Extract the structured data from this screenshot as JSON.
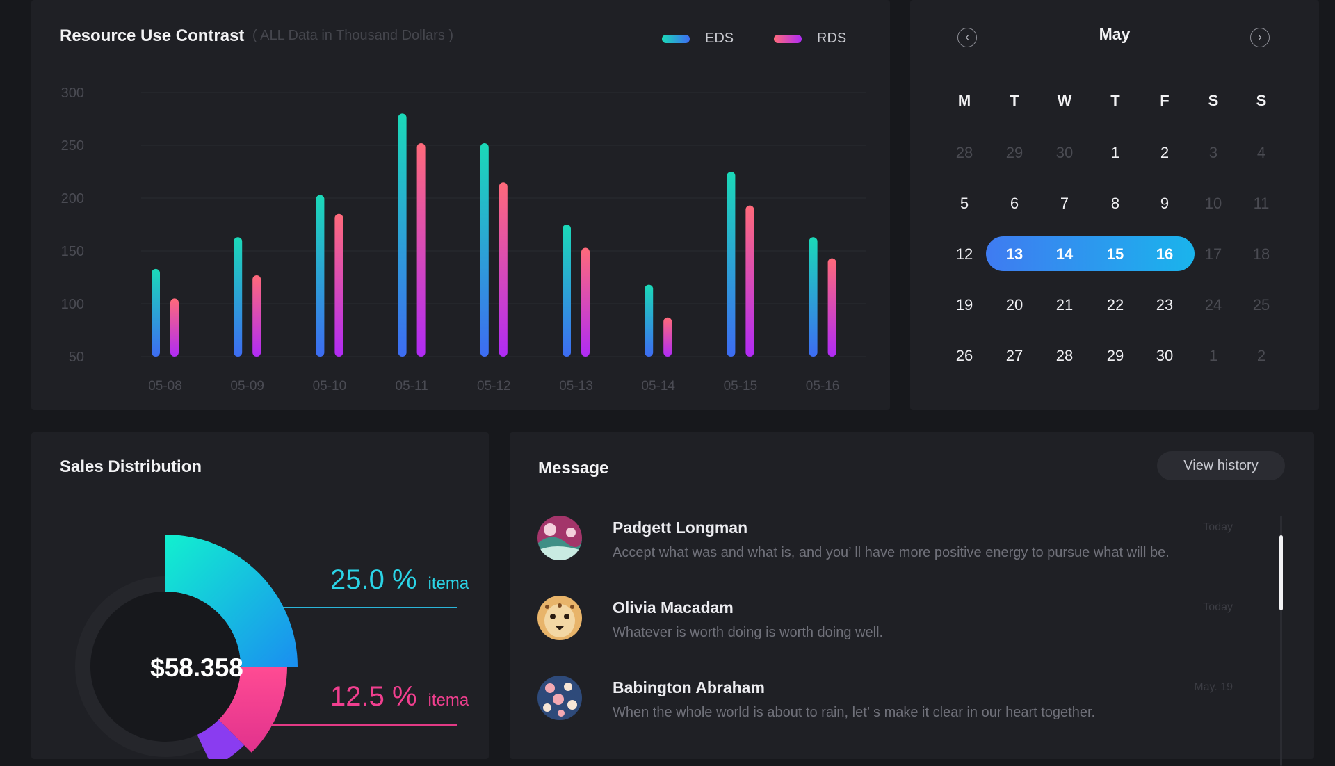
{
  "colors": {
    "background": "#17181c",
    "panel": "#1f2025",
    "eds_gradient": [
      "#1bd9b8",
      "#3d6cf2"
    ],
    "rds_gradient": [
      "#ff6a7a",
      "#b02bf5"
    ],
    "calendar_selection": [
      "#3f7bf1",
      "#1ab4ec"
    ],
    "accent_cyan": "#2bd4e6",
    "accent_pink": "#f13f8f"
  },
  "chart_panel": {
    "title": "Resource Use Contrast",
    "subtitle": "( ALL Data in Thousand Dollars )",
    "legend": [
      {
        "name": "EDS",
        "icon": "gradient-pill-teal-blue"
      },
      {
        "name": "RDS",
        "icon": "gradient-pill-pink-purple"
      }
    ]
  },
  "chart_data": {
    "type": "bar",
    "title": "Resource Use Contrast",
    "subtitle": "( ALL Data in Thousand Dollars )",
    "categories": [
      "05-08",
      "05-09",
      "05-10",
      "05-11",
      "05-12",
      "05-13",
      "05-14",
      "05-15",
      "05-16"
    ],
    "series": [
      {
        "name": "EDS",
        "values": [
          133,
          163,
          203,
          280,
          252,
          175,
          118,
          225,
          163
        ]
      },
      {
        "name": "RDS",
        "values": [
          105,
          127,
          185,
          252,
          215,
          153,
          87,
          193,
          143
        ]
      }
    ],
    "y_ticks": [
      300,
      250,
      200,
      150,
      100,
      50
    ],
    "ylim": [
      50,
      300
    ],
    "xlabel": "",
    "ylabel": "",
    "grid": true,
    "legend_position": "top-right"
  },
  "calendar": {
    "month": "May",
    "prev_icon": "chevron-left-icon",
    "next_icon": "chevron-right-icon",
    "weekdays": [
      "M",
      "T",
      "W",
      "T",
      "F",
      "S",
      "S"
    ],
    "weeks": [
      [
        {
          "d": "28",
          "t": "other"
        },
        {
          "d": "29",
          "t": "other"
        },
        {
          "d": "30",
          "t": "other"
        },
        {
          "d": "1",
          "t": "cur"
        },
        {
          "d": "2",
          "t": "cur"
        },
        {
          "d": "3",
          "t": "other"
        },
        {
          "d": "4",
          "t": "other"
        }
      ],
      [
        {
          "d": "5",
          "t": "cur"
        },
        {
          "d": "6",
          "t": "cur"
        },
        {
          "d": "7",
          "t": "cur"
        },
        {
          "d": "8",
          "t": "cur"
        },
        {
          "d": "9",
          "t": "cur"
        },
        {
          "d": "10",
          "t": "other"
        },
        {
          "d": "11",
          "t": "other"
        }
      ],
      [
        {
          "d": "12",
          "t": "cur"
        },
        {
          "d": "13",
          "t": "sel"
        },
        {
          "d": "14",
          "t": "sel"
        },
        {
          "d": "15",
          "t": "sel"
        },
        {
          "d": "16",
          "t": "sel"
        },
        {
          "d": "17",
          "t": "other"
        },
        {
          "d": "18",
          "t": "other"
        }
      ],
      [
        {
          "d": "19",
          "t": "cur"
        },
        {
          "d": "20",
          "t": "cur"
        },
        {
          "d": "21",
          "t": "cur"
        },
        {
          "d": "22",
          "t": "cur"
        },
        {
          "d": "23",
          "t": "cur"
        },
        {
          "d": "24",
          "t": "other"
        },
        {
          "d": "25",
          "t": "other"
        }
      ],
      [
        {
          "d": "26",
          "t": "cur"
        },
        {
          "d": "27",
          "t": "cur"
        },
        {
          "d": "28",
          "t": "cur"
        },
        {
          "d": "29",
          "t": "cur"
        },
        {
          "d": "30",
          "t": "cur"
        },
        {
          "d": "1",
          "t": "other"
        },
        {
          "d": "2",
          "t": "other"
        }
      ]
    ]
  },
  "sales": {
    "title": "Sales Distribution",
    "total": "$58.358",
    "segments": [
      {
        "percent": "25.0 %",
        "label": "itema",
        "fraction": 0.25,
        "color": "#2bd4e6"
      },
      {
        "percent": "12.5 %",
        "label": "itema",
        "fraction": 0.125,
        "color": "#f13f8f"
      }
    ]
  },
  "messages": {
    "title": "Message",
    "view_history_label": "View history",
    "items": [
      {
        "name": "Padgett  Longman",
        "text": "Accept what was and what is, and you’ ll have more positive energy to pursue what will be.",
        "time": "Today",
        "avatar": "landscape-avatar-icon"
      },
      {
        "name": "Olivia  Macadam",
        "text": "Whatever is worth doing is worth doing well.",
        "time": "Today",
        "avatar": "leopard-avatar-icon"
      },
      {
        "name": "Babington  Abraham",
        "text": "When the whole world is about to rain, let’ s make it clear in our heart together.",
        "time": "May. 19",
        "avatar": "floral-avatar-icon"
      }
    ]
  }
}
